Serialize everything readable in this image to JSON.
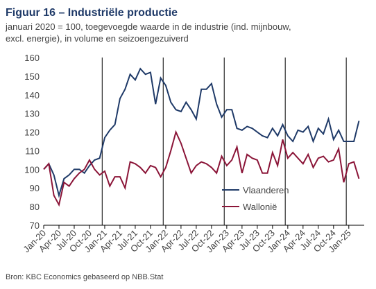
{
  "chart_data": {
    "type": "line",
    "title": "Figuur 16 – Industriële productie",
    "subtitle": [
      "januari 2020 = 100, toegevoegde waarde in de industrie (ind. mijnbouw,",
      "excl. energie), in volume en seizoengezuiverd"
    ],
    "source": "Bron: KBC Economics gebaseerd op NBB.Stat",
    "categories": [
      "Jan-20",
      null,
      null,
      "Apr-20",
      null,
      null,
      "Jul-20",
      null,
      null,
      "Oct-20",
      null,
      null,
      "Jan-21",
      null,
      null,
      "Apr-21",
      null,
      null,
      "Jul-21",
      null,
      null,
      "Oct-21",
      null,
      null,
      "Jan-22",
      null,
      null,
      "Apr-22",
      null,
      null,
      "Jul-22",
      null,
      null,
      "Oct-22",
      null,
      null,
      "Jan-23",
      null,
      null,
      "Apr-23",
      null,
      null,
      "Jul-23",
      null,
      null,
      "Oct-23",
      null,
      null,
      "Jan-24",
      null,
      null,
      "Apr-24",
      null,
      null,
      "Jul-24",
      null,
      null,
      "Oct-24",
      null,
      null,
      "Jan-25",
      null,
      null
    ],
    "series": [
      {
        "name": "Vlaanderen",
        "color": "#1f3a68",
        "values": [
          100,
          103,
          97,
          86,
          95,
          97,
          100,
          100,
          98,
          102,
          105,
          106,
          117,
          121,
          124,
          138,
          143,
          151,
          148,
          154,
          151,
          152,
          135,
          149,
          145,
          136,
          132,
          131,
          136,
          132,
          127,
          143,
          143,
          146,
          135,
          128,
          132,
          132,
          122,
          121,
          123,
          122,
          120,
          118,
          117,
          122,
          118,
          124,
          118,
          115,
          121,
          120,
          123,
          115,
          122,
          119,
          127,
          116,
          121,
          115,
          115,
          115,
          126
        ]
      },
      {
        "name": "Wallonië",
        "color": "#8b1538",
        "values": [
          100,
          103,
          86,
          81,
          93,
          91,
          95,
          98,
          100,
          105,
          100,
          97,
          99,
          91,
          96,
          96,
          90,
          104,
          103,
          101,
          98,
          102,
          101,
          96,
          101,
          110,
          120,
          114,
          106,
          98,
          102,
          104,
          103,
          101,
          98,
          107,
          102,
          105,
          112,
          98,
          108,
          106,
          105,
          98,
          98,
          109,
          102,
          116,
          106,
          109,
          106,
          103,
          108,
          101,
          106,
          107,
          104,
          105,
          111,
          93,
          103,
          104,
          95
        ]
      }
    ],
    "ylim": [
      70,
      160
    ],
    "yticks": [
      70,
      80,
      90,
      100,
      110,
      120,
      130,
      140,
      150,
      160
    ],
    "grid": false,
    "legend": "center-right"
  }
}
